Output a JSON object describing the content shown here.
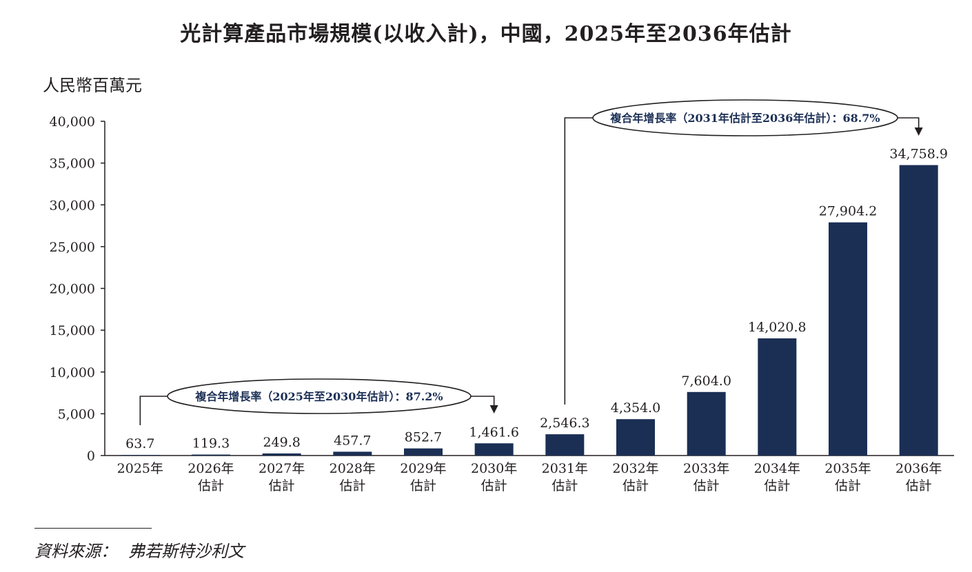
{
  "title": "光計算產品市場規模(以收入計)，中國，2025年至2036年估計",
  "source": {
    "label": "資料來源：",
    "text": "弗若斯特沙利文"
  },
  "colors": {
    "bar": "#1b2f55",
    "text": "#231f20"
  },
  "chart_data": {
    "type": "bar",
    "ylabel": "人民幣百萬元",
    "ylim": [
      0,
      40000
    ],
    "yticks": [
      0,
      5000,
      10000,
      15000,
      20000,
      25000,
      30000,
      35000,
      40000
    ],
    "ytick_labels": [
      "0",
      "5,000",
      "10,000",
      "15,000",
      "20,000",
      "25,000",
      "30,000",
      "35,000",
      "40,000"
    ],
    "categories": [
      [
        "2025年"
      ],
      [
        "2026年",
        "估計"
      ],
      [
        "2027年",
        "估計"
      ],
      [
        "2028年",
        "估計"
      ],
      [
        "2029年",
        "估計"
      ],
      [
        "2030年",
        "估計"
      ],
      [
        "2031年",
        "估計"
      ],
      [
        "2032年",
        "估計"
      ],
      [
        "2033年",
        "估計"
      ],
      [
        "2034年",
        "估計"
      ],
      [
        "2035年",
        "估計"
      ],
      [
        "2036年",
        "估計"
      ]
    ],
    "values": [
      63.7,
      119.3,
      249.8,
      457.7,
      852.7,
      1461.6,
      2546.3,
      4354.0,
      7604.0,
      14020.8,
      27904.2,
      34758.9
    ],
    "value_labels": [
      "63.7",
      "119.3",
      "249.8",
      "457.7",
      "852.7",
      "1,461.6",
      "2,546.3",
      "4,354.0",
      "7,604.0",
      "14,020.8",
      "27,904.2",
      "34,758.9"
    ],
    "grid": false,
    "legend": "none",
    "annotations": [
      {
        "text": "複合年增長率（2025年至2030年估計）：87.2%",
        "from_index": 0,
        "to_index": 5
      },
      {
        "text": "複合年增長率（2031年估計至2036年估計）：68.7%",
        "from_index": 6,
        "to_index": 11
      }
    ]
  }
}
